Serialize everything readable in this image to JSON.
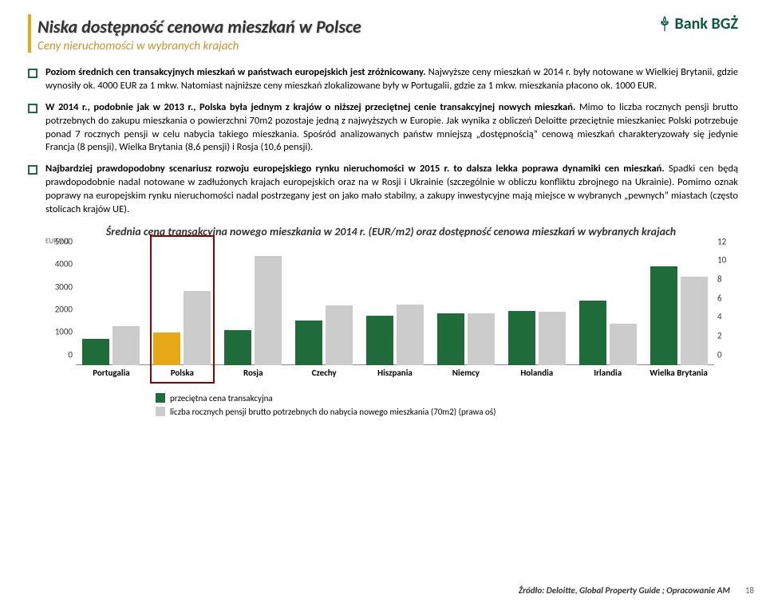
{
  "brand": {
    "name": "Bank BGŻ"
  },
  "header": {
    "title": "Niska dostępność cenowa mieszkań w Polsce",
    "subtitle": "Ceny nieruchomości w wybranych krajach"
  },
  "bullets": [
    {
      "lead": "Poziom średnich cen transakcyjnych mieszkań w państwach europejskich jest zróżnicowany.",
      "rest": " Najwyższe ceny mieszkań w 2014 r. były notowane w Wielkiej Brytanii, gdzie wynosiły ok. 4000 EUR za 1 mkw. Natomiast najniższe ceny mieszkań zlokalizowane były w Portugalii, gdzie za 1 mkw. mieszkania płacono ok. 1000 EUR."
    },
    {
      "lead": "W 2014 r., podobnie jak w 2013 r., Polska była jednym z krajów o niższej przeciętnej cenie transakcyjnej nowych mieszkań.",
      "rest": " Mimo to liczba rocznych pensji brutto potrzebnych do zakupu mieszkania o powierzchni 70m2 pozostaje jedną z najwyższych w Europie. Jak wynika z obliczeń Deloitte przeciętnie mieszkaniec Polski potrzebuje ponad 7 rocznych pensji w celu nabycia takiego mieszkania. Spośród analizowanych państw mniejszą „dostępnością” cenową mieszkań charakteryzowały się jedynie Francja (8 pensji), Wielka Brytania (8,6 pensji) i Rosja (10,6 pensji)."
    },
    {
      "lead": "Najbardziej prawdopodobny scenariusz rozwoju europejskiego rynku nieruchomości w 2015 r. to dalsza lekka poprawa dynamiki cen mieszkań.",
      "rest": " Spadki cen będą prawdopodobnie nadal notowane w zadłużonych krajach europejskich oraz na w Rosji i Ukrainie (szczególnie w obliczu konfliktu zbrojnego na Ukrainie). Pomimo oznak poprawy na europejskim rynku nieruchomości nadal postrzegany jest on jako mało stabilny, a zakupy inwestycyjne mają miejsce w wybranych „pewnych” miastach (często stolicach krajów UE)."
    }
  ],
  "chart": {
    "title": "Średnia cena transakcyjna nowego mieszkania w 2014 r. (EUR/m2) oraz dostępność cenowa mieszkań w wybranych krajach",
    "unit_label": "EUR/m2",
    "left_axis": {
      "max": 5000,
      "ticks": [
        5000,
        4000,
        3000,
        2000,
        1000,
        0
      ]
    },
    "right_axis": {
      "max": 12,
      "ticks": [
        12,
        10,
        8,
        6,
        4,
        2,
        0
      ]
    },
    "categories": [
      "Portugalia",
      "Polska",
      "Rosja",
      "Czechy",
      "Hiszpania",
      "Niemcy",
      "Holandia",
      "Irlandia",
      "Wielka Brytania"
    ],
    "series1": {
      "label": "przeciętna cena transakcyjna",
      "color": "#1f6b3a",
      "values": [
        1050,
        1300,
        1400,
        1800,
        2000,
        2100,
        2200,
        2600,
        4000
      ]
    },
    "series2": {
      "label": "liczba rocznych pensji brutto potrzebnych do nabycia nowego mieszkania (70m2) (prawa oś)",
      "color": "#cccccc",
      "values": [
        3.8,
        7.2,
        10.6,
        5.8,
        5.9,
        5.0,
        5.2,
        4.0,
        8.6
      ]
    },
    "highlight_index": 1,
    "highlight_color": "#8b0000",
    "poland_bar_color": "#e6a817",
    "background": "#ffffff"
  },
  "legend": {
    "item1": "przeciętna cena transakcyjna",
    "item2": "liczba rocznych pensji brutto potrzebnych do nabycia nowego mieszkania (70m2) (prawa oś)"
  },
  "source": "Źródło: Deloitte, Global Property Guide ; Opracowanie AM",
  "page_number": "18"
}
